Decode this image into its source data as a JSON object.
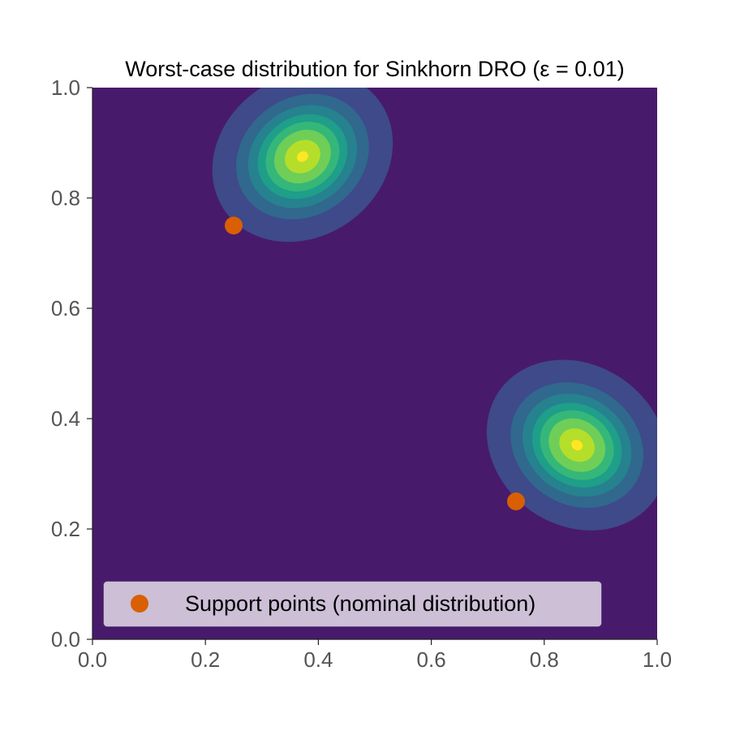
{
  "chart_data": {
    "type": "contour",
    "title": "Worst-case distribution for Sinkhorn DRO (ε = 0.01)",
    "xlabel": "",
    "ylabel": "",
    "xlim": [
      0.0,
      1.0
    ],
    "ylim": [
      0.0,
      1.0
    ],
    "x_ticks": [
      "0.0",
      "0.2",
      "0.4",
      "0.6",
      "0.8",
      "1.0"
    ],
    "y_ticks": [
      "0.0",
      "0.2",
      "0.4",
      "0.6",
      "0.8",
      "1.0"
    ],
    "grid": false,
    "legend_position": "lower-left",
    "background_color": "#481a6c",
    "level_colors": [
      "#481a6c",
      "#3e4a89",
      "#31688e",
      "#26828e",
      "#1f9e89",
      "#35b779",
      "#6ece58",
      "#b5de2b",
      "#fde725"
    ],
    "modes": [
      {
        "center": [
          0.372,
          0.875
        ],
        "sigma_x": 0.06,
        "sigma_y": 0.052,
        "rotation_deg": 35
      },
      {
        "center": [
          0.858,
          0.352
        ],
        "sigma_x": 0.06,
        "sigma_y": 0.052,
        "rotation_deg": -35
      }
    ],
    "series": [
      {
        "name": "Support points (nominal distribution)",
        "type": "scatter",
        "color": "#d95f02",
        "points": [
          [
            0.25,
            0.75
          ],
          [
            0.75,
            0.25
          ]
        ]
      }
    ]
  }
}
